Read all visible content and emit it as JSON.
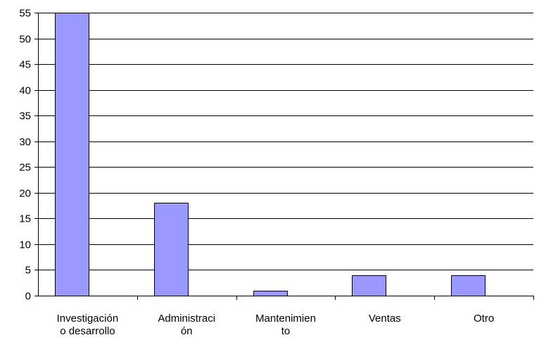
{
  "chart_data": {
    "type": "bar",
    "categories": [
      [
        "Investigación",
        "o desarrollo"
      ],
      [
        "Administraci",
        "ón"
      ],
      [
        "Mantenimien",
        "to"
      ],
      [
        "Ventas"
      ],
      [
        "Otro"
      ]
    ],
    "values": [
      55,
      18,
      1,
      4,
      4
    ],
    "ylim": [
      0,
      55
    ],
    "yticks": [
      "0",
      "5",
      "10",
      "15",
      "20",
      "25",
      "30",
      "35",
      "40",
      "45",
      "50",
      "55"
    ],
    "grid": true,
    "bar_color": "#9999ff",
    "bar_edge_color": "#000000"
  }
}
